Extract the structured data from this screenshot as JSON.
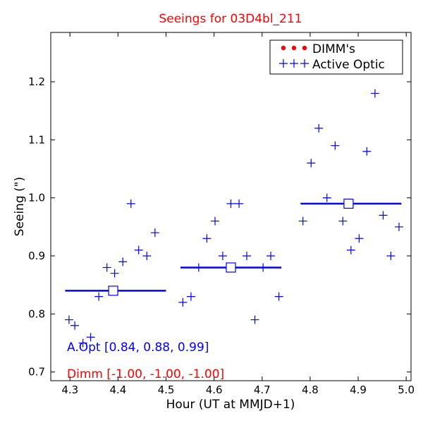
{
  "chart_data": {
    "type": "scatter",
    "title": "Seeings for 03D4bl_211",
    "title_color": "#ff0000",
    "xlabel": "Hour (UT at MMJD+1)",
    "ylabel": "Seeing (\")",
    "xlim": [
      4.26,
      5.01
    ],
    "ylim": [
      0.685,
      1.285
    ],
    "xticks": [
      4.3,
      4.4,
      4.5,
      4.6,
      4.7,
      4.8,
      4.9,
      5.0
    ],
    "xtick_labels": [
      "4.3",
      "4.4",
      "4.5",
      "4.6",
      "4.7",
      "4.8",
      "4.9",
      "5.0"
    ],
    "yticks": [
      0.7,
      0.8,
      0.9,
      1.0,
      1.1,
      1.2
    ],
    "ytick_labels": [
      "0.7",
      "0.8",
      "0.9",
      "1.0",
      "1.1",
      "1.2"
    ],
    "grid": false,
    "legend_position": "top-right",
    "series": [
      {
        "name": "DIMM's",
        "marker": "dot",
        "color": "#ff0000",
        "points": []
      },
      {
        "name": "Active Optic",
        "marker": "plus",
        "color": "#0000ff",
        "points": [
          [
            4.298,
            0.79
          ],
          [
            4.31,
            0.78
          ],
          [
            4.327,
            0.75
          ],
          [
            4.343,
            0.76
          ],
          [
            4.36,
            0.83
          ],
          [
            4.377,
            0.88
          ],
          [
            4.393,
            0.87
          ],
          [
            4.41,
            0.89
          ],
          [
            4.427,
            0.99
          ],
          [
            4.443,
            0.91
          ],
          [
            4.46,
            0.9
          ],
          [
            4.477,
            0.94
          ],
          [
            4.535,
            0.82
          ],
          [
            4.552,
            0.83
          ],
          [
            4.568,
            0.88
          ],
          [
            4.585,
            0.93
          ],
          [
            4.602,
            0.96
          ],
          [
            4.618,
            0.9
          ],
          [
            4.635,
            0.99
          ],
          [
            4.652,
            0.99
          ],
          [
            4.668,
            0.9
          ],
          [
            4.685,
            0.79
          ],
          [
            4.702,
            0.88
          ],
          [
            4.718,
            0.9
          ],
          [
            4.735,
            0.83
          ],
          [
            4.785,
            0.96
          ],
          [
            4.802,
            1.06
          ],
          [
            4.818,
            1.12
          ],
          [
            4.835,
            1.0
          ],
          [
            4.852,
            1.09
          ],
          [
            4.868,
            0.96
          ],
          [
            4.885,
            0.91
          ],
          [
            4.902,
            0.93
          ],
          [
            4.918,
            1.08
          ],
          [
            4.935,
            1.18
          ],
          [
            4.952,
            0.97
          ],
          [
            4.968,
            0.9
          ],
          [
            4.985,
            0.95
          ]
        ]
      }
    ],
    "averages": [
      {
        "x_start": 4.29,
        "x_end": 4.5,
        "x_mid": 4.39,
        "value": 0.84
      },
      {
        "x_start": 4.53,
        "x_end": 4.74,
        "x_mid": 4.635,
        "value": 0.88
      },
      {
        "x_start": 4.78,
        "x_end": 4.99,
        "x_mid": 4.88,
        "value": 0.99
      }
    ],
    "averages_color": "#0000ff",
    "annotations": [
      {
        "text": "A.Opt [0.84, 0.88, 0.99]",
        "color": "#0000ff"
      },
      {
        "text": "Dimm [-1.00, -1.00, -1.00]",
        "color": "#ff0000"
      }
    ]
  }
}
